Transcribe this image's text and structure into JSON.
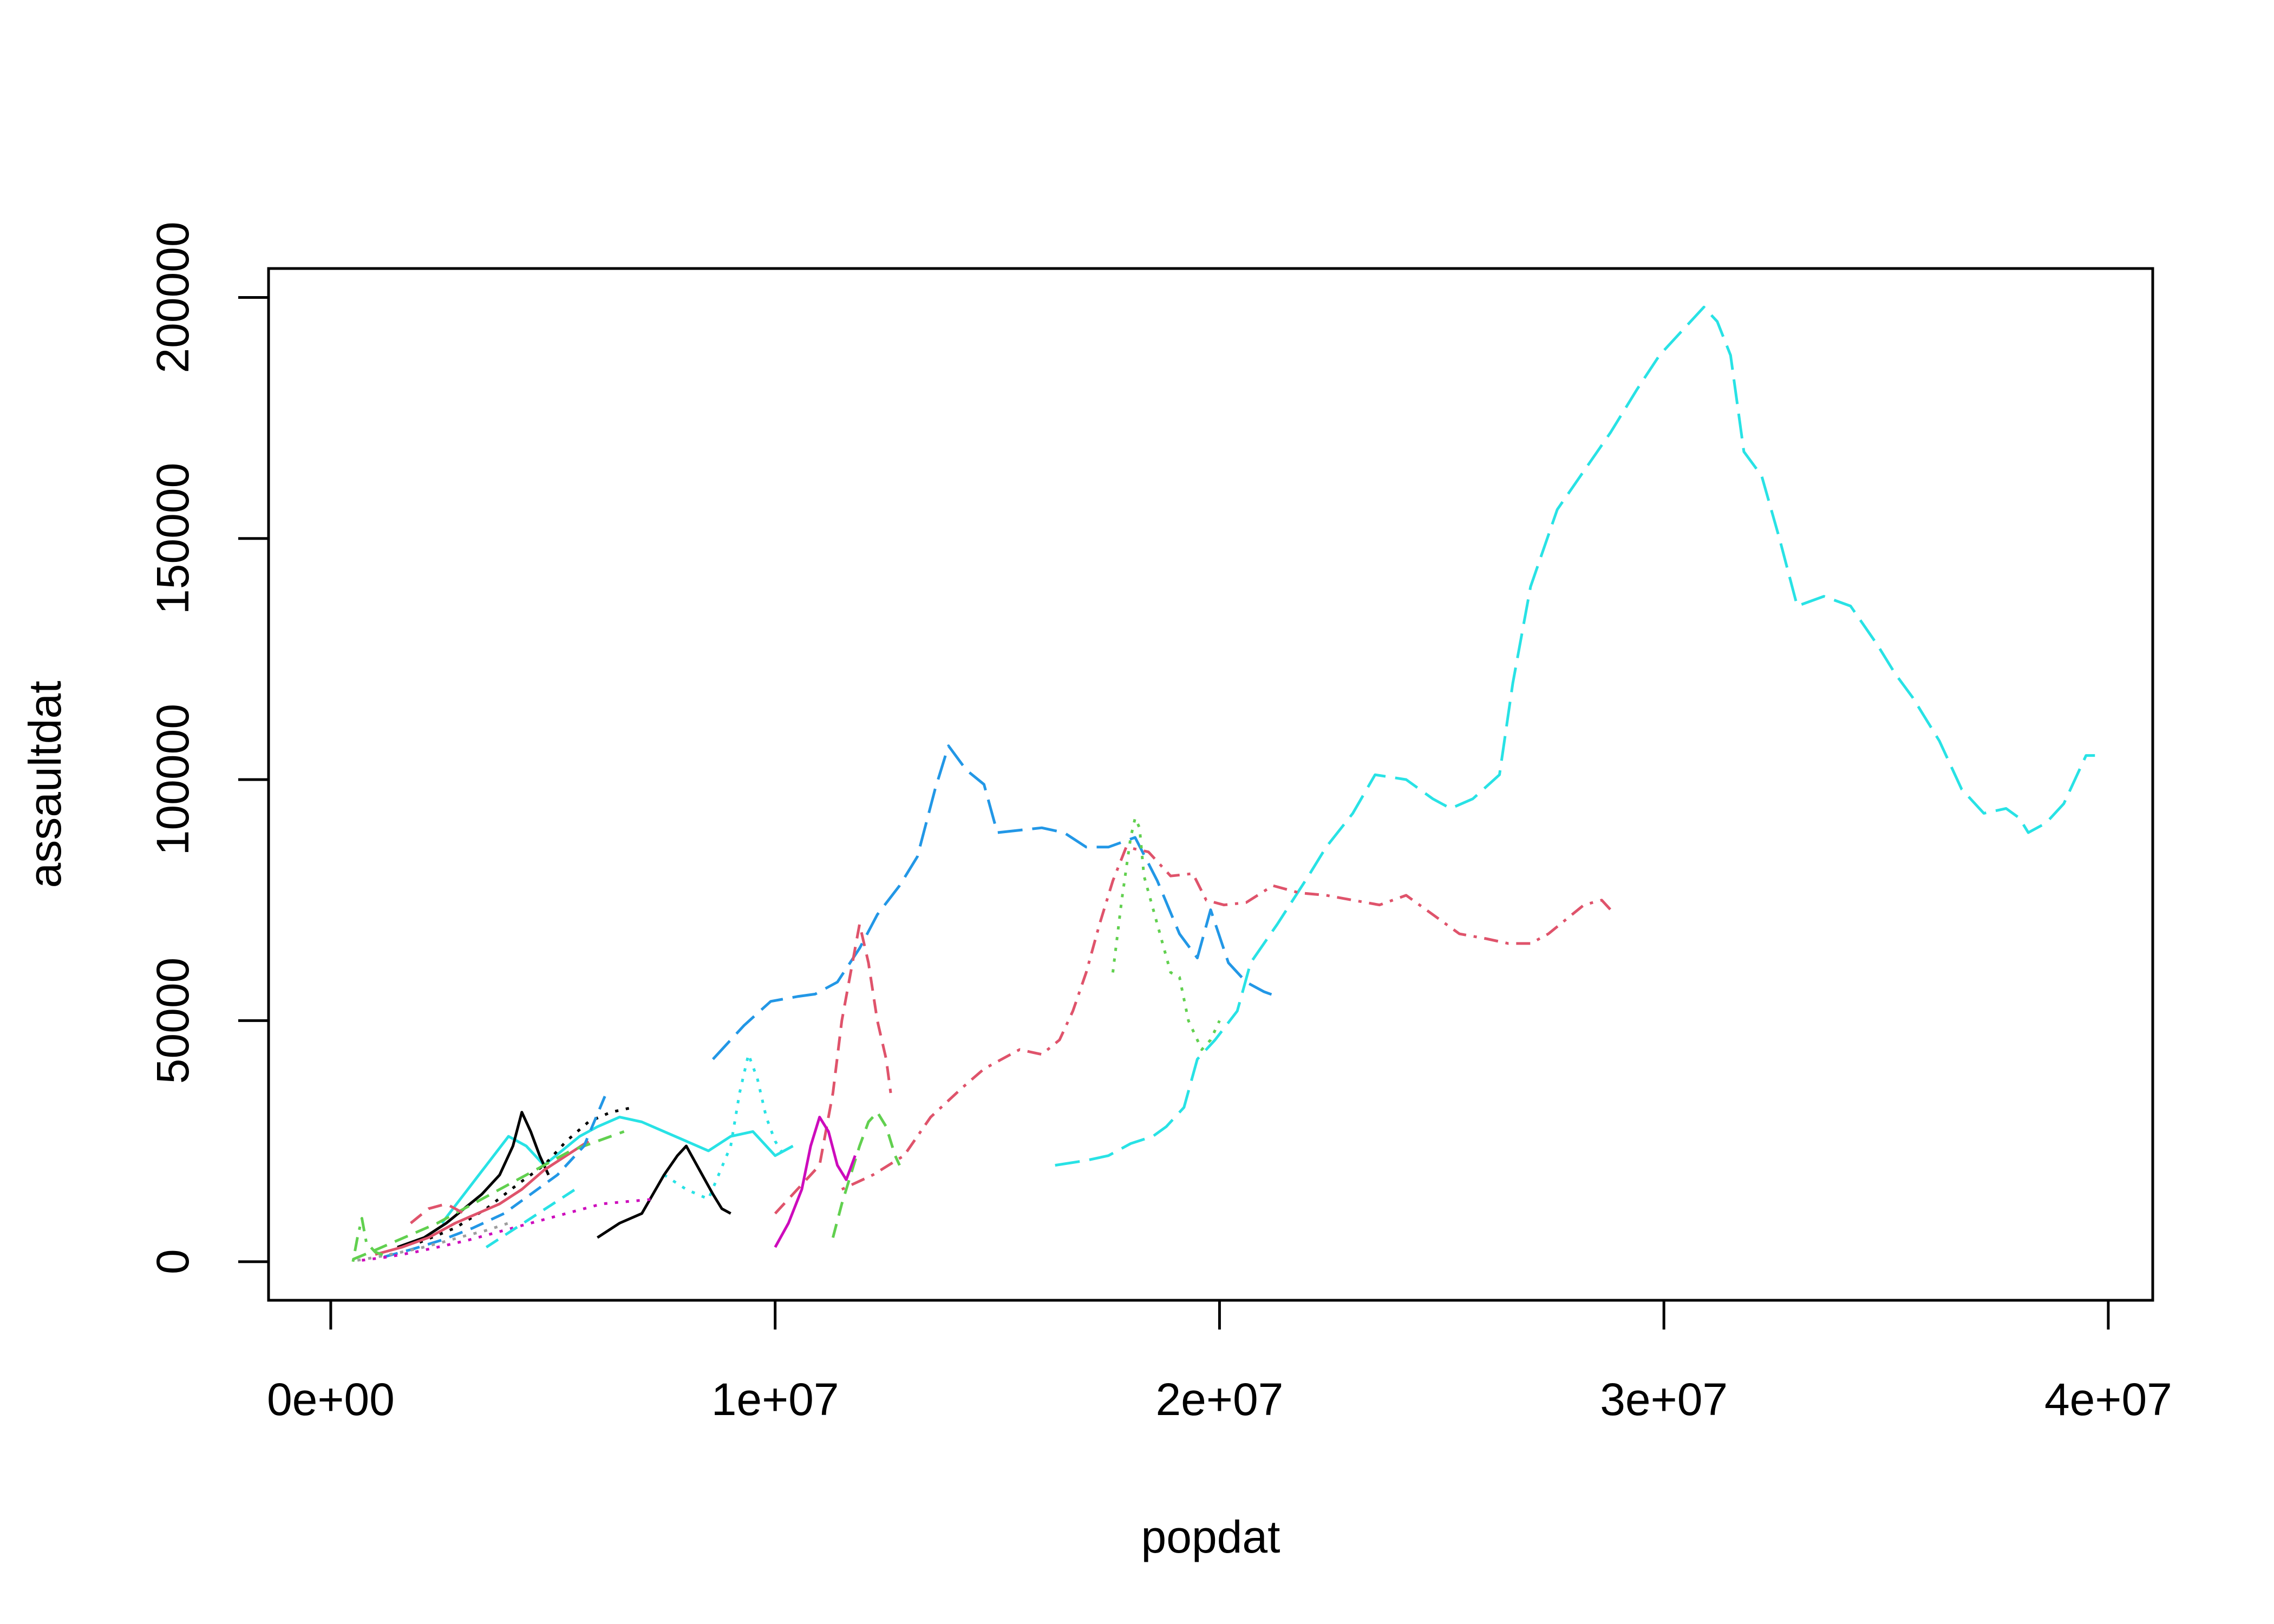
{
  "chart_data": {
    "type": "line",
    "title": "",
    "xlabel": "popdat",
    "ylabel": "assaultdat",
    "xlim": [
      -1400000,
      41000000
    ],
    "ylim": [
      -8000,
      206000
    ],
    "x_ticks": [
      {
        "value": 0,
        "label": "0e+00"
      },
      {
        "value": 10000000,
        "label": "1e+07"
      },
      {
        "value": 20000000,
        "label": "2e+07"
      },
      {
        "value": 30000000,
        "label": "3e+07"
      },
      {
        "value": 40000000,
        "label": "4e+07"
      }
    ],
    "y_ticks": [
      {
        "value": 0,
        "label": "0"
      },
      {
        "value": 50000,
        "label": "50000"
      },
      {
        "value": 100000,
        "label": "100000"
      },
      {
        "value": 150000,
        "label": "150000"
      },
      {
        "value": 200000,
        "label": "200000"
      }
    ],
    "grid": false,
    "legend": "none",
    "series": [
      {
        "color": "#28E2E5",
        "dash": "longdash",
        "x": [
          16300000,
          17000000,
          17500000,
          18000000,
          18500000,
          18800000,
          19200000,
          19500000,
          19900000,
          20400000,
          20700000,
          21300000,
          22000000,
          22400000,
          23000000,
          23500000,
          24200000,
          24800000,
          25200000,
          25700000,
          26300000,
          26600000,
          27000000,
          27600000,
          28200000,
          28800000,
          29400000,
          29900000,
          30400000,
          30900000,
          31200000,
          31500000,
          31800000,
          32200000,
          32600000,
          33000000,
          33600000,
          34200000,
          34800000,
          35200000,
          35600000,
          36200000,
          36700000,
          37200000,
          37700000,
          38000000,
          38200000,
          38600000,
          39000000,
          39500000,
          39700000
        ],
        "y": [
          20000,
          21000,
          22000,
          24500,
          26000,
          28000,
          32000,
          42000,
          46000,
          52000,
          62000,
          70000,
          80000,
          86000,
          93000,
          101000,
          100000,
          96000,
          94000,
          96000,
          101000,
          120000,
          140000,
          156000,
          164000,
          172000,
          181000,
          188000,
          193000,
          198000,
          195000,
          188000,
          168000,
          163000,
          150000,
          136000,
          138000,
          136000,
          128000,
          122000,
          117000,
          108000,
          98000,
          93000,
          94000,
          92000,
          89000,
          91000,
          95000,
          105000,
          105000
        ]
      },
      {
        "color": "#2297E6",
        "dash": "longdash",
        "x": [
          8600000,
          9300000,
          9900000,
          10500000,
          10900000,
          11400000,
          11900000,
          12300000,
          12800000,
          13200000,
          13600000,
          13900000,
          14300000,
          14700000,
          15000000,
          15500000,
          16000000,
          16500000,
          17000000,
          17500000,
          18100000,
          18600000,
          19100000,
          19500000,
          19800000,
          20200000,
          20600000,
          21000000,
          21300000
        ],
        "y": [
          42000,
          49000,
          54000,
          55000,
          55500,
          58000,
          65000,
          72000,
          78000,
          84000,
          98000,
          107000,
          102000,
          99000,
          89000,
          89500,
          90000,
          89000,
          86000,
          86000,
          88000,
          79000,
          68000,
          63000,
          73000,
          62000,
          58000,
          56000,
          55000
        ]
      },
      {
        "color": "#DF536B",
        "dash": "dashdot",
        "x": [
          11500000,
          12200000,
          12900000,
          13500000,
          14200000,
          14700000,
          15100000,
          15500000,
          16000000,
          16400000,
          16700000,
          17000000,
          17300000,
          17600000,
          17900000,
          18400000,
          18900000,
          19400000,
          19700000,
          20100000,
          20600000,
          21200000,
          21800000,
          22400000,
          23000000,
          23600000,
          24200000,
          24800000,
          25400000,
          26000000,
          26500000,
          27000000,
          27400000,
          27800000,
          28200000,
          28600000,
          28800000
        ],
        "y": [
          15000,
          18000,
          22000,
          30000,
          36000,
          40000,
          42000,
          44000,
          43000,
          46000,
          52000,
          60000,
          70000,
          79000,
          86000,
          85000,
          80000,
          80500,
          75000,
          74000,
          74500,
          78000,
          76500,
          76000,
          75000,
          74000,
          76000,
          72000,
          68000,
          67000,
          66000,
          66000,
          68000,
          71000,
          74000,
          75000,
          73000
        ]
      },
      {
        "color": "#DF536B",
        "dash": "dashed",
        "x": [
          10000000,
          10500000,
          11000000,
          11300000,
          11500000,
          11700000,
          11900000,
          12100000,
          12300000,
          12500000,
          12600000
        ],
        "y": [
          10000,
          15000,
          20000,
          35000,
          50000,
          60000,
          70000,
          62000,
          50000,
          42000,
          35000
        ]
      },
      {
        "color": "#61D04F",
        "dash": "dotted",
        "x": [
          17600000,
          17800000,
          18000000,
          18100000,
          18200000,
          18300000,
          18600000,
          18900000,
          19100000,
          19300000,
          19600000,
          19800000,
          19900000,
          20000000
        ],
        "y": [
          60000,
          75000,
          88000,
          92000,
          90000,
          80000,
          70000,
          60000,
          59000,
          50000,
          44000,
          46000,
          48000,
          50000
        ]
      },
      {
        "color": "#61D04F",
        "dash": "dashed",
        "x": [
          11300000,
          11500000,
          11700000,
          11900000,
          12100000,
          12300000,
          12500000,
          12700000,
          12800000
        ],
        "y": [
          5000,
          12000,
          18000,
          24000,
          29000,
          31000,
          28000,
          22000,
          20000
        ]
      },
      {
        "color": "#28E2E5",
        "dash": "dotted",
        "x": [
          7500000,
          8000000,
          8500000,
          9000000,
          9200000,
          9400000,
          9600000,
          9800000,
          10000000,
          10200000
        ],
        "y": [
          18000,
          15000,
          13000,
          24000,
          35000,
          43000,
          38000,
          30000,
          25000,
          22000
        ]
      },
      {
        "color": "#CD0BBC",
        "dash": "solid",
        "x": [
          10000000,
          10300000,
          10600000,
          10800000,
          11000000,
          11200000,
          11400000,
          11600000,
          11800000
        ],
        "y": [
          3000,
          8000,
          15000,
          24000,
          30000,
          27000,
          20000,
          17000,
          22000
        ]
      },
      {
        "color": "#000000",
        "dash": "solid",
        "x": [
          6000000,
          6500000,
          7000000,
          7500000,
          7800000,
          8000000,
          8300000,
          8600000,
          8800000,
          9000000
        ],
        "y": [
          5000,
          8000,
          10000,
          18000,
          22000,
          24000,
          19000,
          14000,
          11000,
          10000
        ]
      },
      {
        "color": "#28E2E5",
        "dash": "solid",
        "x": [
          2500000,
          3000000,
          3500000,
          4000000,
          4400000,
          4800000,
          5200000,
          5600000,
          6000000,
          6500000,
          7000000,
          7500000,
          8000000,
          8500000,
          9000000,
          9500000,
          10000000,
          10400000
        ],
        "y": [
          8000,
          14000,
          20000,
          26000,
          24000,
          20000,
          23000,
          26000,
          28000,
          30000,
          29000,
          27000,
          25000,
          23000,
          26000,
          27000,
          22000,
          24000
        ]
      },
      {
        "color": "#000000",
        "dash": "dotted",
        "x": [
          2000000,
          2800000,
          3500000,
          4200000,
          4800000,
          5300000,
          5800000,
          6300000,
          6800000
        ],
        "y": [
          4000,
          7000,
          11000,
          16000,
          20000,
          25000,
          29000,
          31000,
          32000
        ]
      },
      {
        "color": "#000000",
        "dash": "solid",
        "x": [
          1500000,
          2100000,
          2600000,
          3000000,
          3400000,
          3800000,
          4100000,
          4300000,
          4500000,
          4700000,
          4900000
        ],
        "y": [
          3000,
          5000,
          8000,
          11000,
          14000,
          18000,
          24000,
          31000,
          27000,
          22000,
          18000
        ]
      },
      {
        "color": "#DF536B",
        "dash": "solid",
        "x": [
          1000000,
          1600000,
          2200000,
          2800000,
          3300000,
          3800000,
          4300000,
          4800000,
          5300000,
          5800000
        ],
        "y": [
          1500,
          3000,
          5000,
          8000,
          10000,
          12000,
          15000,
          19000,
          22000,
          25000
        ]
      },
      {
        "color": "#61D04F",
        "dash": "dashed",
        "x": [
          500000,
          900000,
          1400000,
          1900000,
          2400000,
          3000000,
          3600000,
          4200000,
          4800000,
          5400000,
          6000000,
          6600000
        ],
        "y": [
          500,
          2000,
          4000,
          6000,
          8000,
          11000,
          14000,
          17000,
          20000,
          23000,
          25000,
          27000
        ]
      },
      {
        "color": "#2297E6",
        "dash": "dashed",
        "x": [
          1200000,
          1800000,
          2500000,
          3200000,
          3900000,
          4500000,
          5100000,
          5700000,
          6200000
        ],
        "y": [
          1000,
          2500,
          4500,
          7000,
          10000,
          14000,
          18000,
          24000,
          35000
        ]
      },
      {
        "color": "#9E9E9E",
        "dash": "dotted",
        "x": [
          600000,
          1000000,
          1500000,
          2000000,
          2500000,
          3000000,
          3500000,
          4000000
        ],
        "y": [
          300,
          900,
          1800,
          2800,
          4000,
          5300,
          6500,
          8000
        ]
      },
      {
        "color": "#CD0BBC",
        "dash": "dotted",
        "x": [
          700000,
          1300000,
          1900000,
          2500000,
          3100000,
          3700000,
          4300000,
          4900000,
          5500000,
          6100000,
          6700000,
          7300000
        ],
        "y": [
          300,
          1000,
          2000,
          3200,
          4500,
          6000,
          7500,
          9000,
          10500,
          12000,
          12500,
          13000
        ]
      },
      {
        "color": "#61D04F",
        "dash": "dashdot",
        "x": [
          500000,
          600000,
          700000,
          800000,
          1000000,
          1300000
        ],
        "y": [
          0,
          5000,
          9000,
          4000,
          2000,
          1000
        ]
      },
      {
        "color": "#DF536B",
        "dash": "dashed",
        "x": [
          1800000,
          2200000,
          2600000,
          3000000
        ],
        "y": [
          8000,
          11000,
          12000,
          10000
        ]
      },
      {
        "color": "#28E2E5",
        "dash": "dashed",
        "x": [
          3500000,
          4000000,
          4500000,
          5000000,
          5500000
        ],
        "y": [
          3000,
          6000,
          9000,
          12000,
          15000
        ]
      }
    ]
  }
}
